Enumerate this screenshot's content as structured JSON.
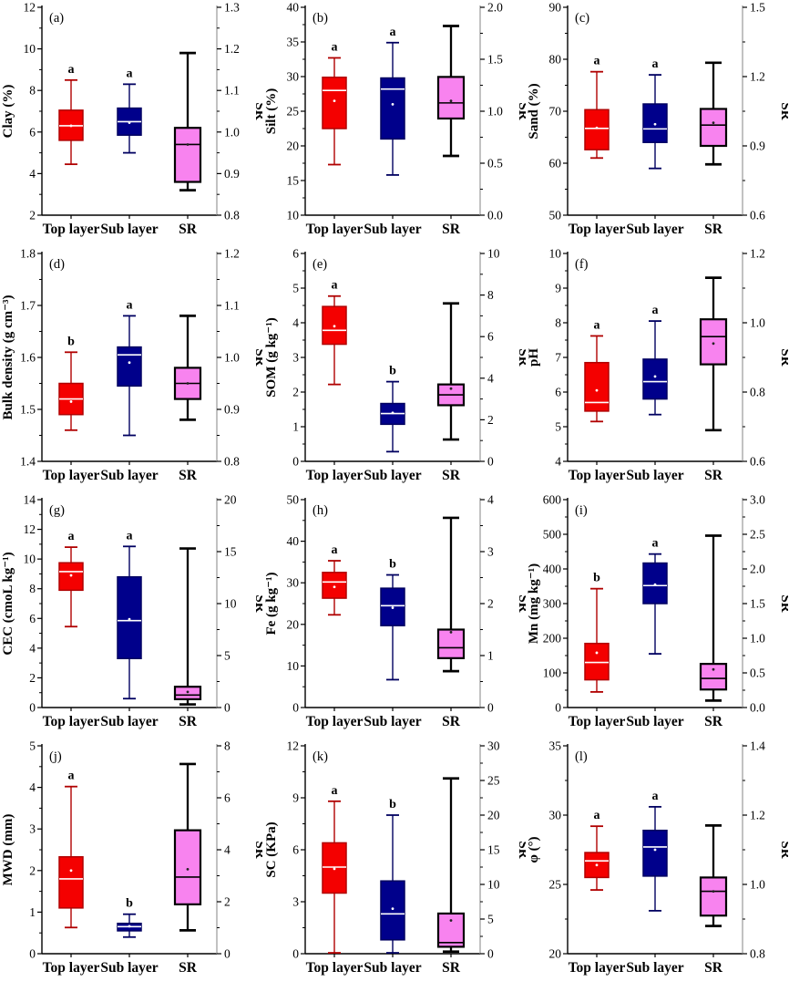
{
  "figure_name": "Soil property box plots by layer",
  "categories": [
    "Top layer",
    "Sub layer",
    "SR"
  ],
  "colors": {
    "top_layer": {
      "fill": "#f40000",
      "stroke": "#b00000",
      "median": "#ffffff",
      "mean": "#ffffff"
    },
    "sub_layer": {
      "fill": "#00008b",
      "stroke": "#000060",
      "median": "#ffffff",
      "mean": "#ffffff"
    },
    "sr": {
      "fill": "#f883ef",
      "stroke": "#000000",
      "median": "#000000",
      "mean": "#222222"
    },
    "right_spine": "#9a9a9a",
    "axis": "#000000"
  },
  "chart_data": [
    {
      "type": "box",
      "label": "(a)",
      "ylabel_left": "Clay (%)",
      "ylabel_right": "SR",
      "left_axis": {
        "min": 2,
        "max": 12,
        "ticks": [
          2,
          4,
          6,
          8,
          10,
          12
        ],
        "tick_labels": [
          "2",
          "4",
          "6",
          "8",
          "10",
          "12"
        ]
      },
      "right_axis": {
        "min": 0.8,
        "max": 1.3,
        "ticks": [
          0.8,
          0.9,
          1.0,
          1.1,
          1.2,
          1.3
        ],
        "tick_labels": [
          "0.8",
          "0.9",
          "1.0",
          "1.1",
          "1.2",
          "1.3"
        ]
      },
      "boxes": [
        {
          "category": "Top layer",
          "axis": "left",
          "color": "top_layer",
          "whisker_low": 4.45,
          "q1": 5.6,
          "median": 6.3,
          "q3": 7.05,
          "whisker_high": 8.5,
          "mean": 6.3,
          "sig": "a"
        },
        {
          "category": "Sub layer",
          "axis": "left",
          "color": "sub_layer",
          "whisker_low": 5.0,
          "q1": 5.85,
          "median": 6.5,
          "q3": 7.15,
          "whisker_high": 8.3,
          "mean": 6.45,
          "sig": "a"
        },
        {
          "category": "SR",
          "axis": "right",
          "color": "sr",
          "whisker_low": 0.86,
          "q1": 0.88,
          "median": 0.97,
          "q3": 1.01,
          "whisker_high": 1.19,
          "mean": 0.97,
          "sig": ""
        }
      ]
    },
    {
      "type": "box",
      "label": "(b)",
      "ylabel_left": "Silt (%)",
      "ylabel_right": "SR",
      "left_axis": {
        "min": 10,
        "max": 40,
        "ticks": [
          10,
          15,
          20,
          25,
          30,
          35,
          40
        ],
        "tick_labels": [
          "10",
          "15",
          "20",
          "25",
          "30",
          "35",
          "40"
        ]
      },
      "right_axis": {
        "min": 0.0,
        "max": 2.0,
        "ticks": [
          0.0,
          0.5,
          1.0,
          1.5,
          2.0
        ],
        "tick_labels": [
          "0.0",
          "0.5",
          "1.0",
          "1.5",
          "2.0"
        ]
      },
      "boxes": [
        {
          "category": "Top layer",
          "axis": "left",
          "color": "top_layer",
          "whisker_low": 17.3,
          "q1": 22.5,
          "median": 28.0,
          "q3": 29.9,
          "whisker_high": 32.7,
          "mean": 26.5,
          "sig": "a"
        },
        {
          "category": "Sub layer",
          "axis": "left",
          "color": "sub_layer",
          "whisker_low": 15.8,
          "q1": 21.0,
          "median": 28.2,
          "q3": 29.8,
          "whisker_high": 34.9,
          "mean": 26.0,
          "sig": "a"
        },
        {
          "category": "SR",
          "axis": "right",
          "color": "sr",
          "whisker_low": 0.57,
          "q1": 0.93,
          "median": 1.08,
          "q3": 1.33,
          "whisker_high": 1.82,
          "mean": 1.1,
          "sig": ""
        }
      ]
    },
    {
      "type": "box",
      "label": "(c)",
      "ylabel_left": "Sand (%)",
      "ylabel_right": "SR",
      "left_axis": {
        "min": 50,
        "max": 90,
        "ticks": [
          50,
          60,
          70,
          80,
          90
        ],
        "tick_labels": [
          "50",
          "60",
          "70",
          "80",
          "90"
        ]
      },
      "right_axis": {
        "min": 0.6,
        "max": 1.5,
        "ticks": [
          0.6,
          0.9,
          1.2,
          1.5
        ],
        "tick_labels": [
          "0.6",
          "0.9",
          "1.2",
          "1.5"
        ]
      },
      "boxes": [
        {
          "category": "Top layer",
          "axis": "left",
          "color": "top_layer",
          "whisker_low": 61.0,
          "q1": 62.6,
          "median": 66.7,
          "q3": 70.3,
          "whisker_high": 77.6,
          "mean": 66.8,
          "sig": "a"
        },
        {
          "category": "Sub layer",
          "axis": "left",
          "color": "sub_layer",
          "whisker_low": 59.0,
          "q1": 64.0,
          "median": 66.6,
          "q3": 71.4,
          "whisker_high": 77.0,
          "mean": 67.5,
          "sig": "a"
        },
        {
          "category": "SR",
          "axis": "right",
          "color": "sr",
          "whisker_low": 0.82,
          "q1": 0.9,
          "median": 0.99,
          "q3": 1.06,
          "whisker_high": 1.26,
          "mean": 1.0,
          "sig": ""
        }
      ]
    },
    {
      "type": "box",
      "label": "(d)",
      "ylabel_left": "Bulk density (g cm⁻³)",
      "ylabel_right": "SR",
      "left_axis": {
        "min": 1.4,
        "max": 1.8,
        "ticks": [
          1.4,
          1.5,
          1.6,
          1.7,
          1.8
        ],
        "tick_labels": [
          "1.4",
          "1.5",
          "1.6",
          "1.7",
          "1.8"
        ]
      },
      "right_axis": {
        "min": 0.8,
        "max": 1.2,
        "ticks": [
          0.8,
          0.9,
          1.0,
          1.1,
          1.2
        ],
        "tick_labels": [
          "0.8",
          "0.9",
          "1.0",
          "1.1",
          "1.2"
        ]
      },
      "boxes": [
        {
          "category": "Top layer",
          "axis": "left",
          "color": "top_layer",
          "whisker_low": 1.46,
          "q1": 1.49,
          "median": 1.52,
          "q3": 1.55,
          "whisker_high": 1.61,
          "mean": 1.515,
          "sig": "b"
        },
        {
          "category": "Sub layer",
          "axis": "left",
          "color": "sub_layer",
          "whisker_low": 1.45,
          "q1": 1.545,
          "median": 1.605,
          "q3": 1.62,
          "whisker_high": 1.68,
          "mean": 1.59,
          "sig": "a"
        },
        {
          "category": "SR",
          "axis": "right",
          "color": "sr",
          "whisker_low": 0.88,
          "q1": 0.92,
          "median": 0.95,
          "q3": 0.98,
          "whisker_high": 1.08,
          "mean": 0.95,
          "sig": ""
        }
      ]
    },
    {
      "type": "box",
      "label": "(e)",
      "ylabel_left": "SOM (g kg⁻¹)",
      "ylabel_right": "SR",
      "left_axis": {
        "min": 0,
        "max": 6,
        "ticks": [
          0,
          1,
          2,
          3,
          4,
          5,
          6
        ],
        "tick_labels": [
          "0",
          "1",
          "2",
          "3",
          "4",
          "5",
          "6"
        ]
      },
      "right_axis": {
        "min": 0,
        "max": 10,
        "ticks": [
          0,
          2,
          4,
          6,
          8,
          10
        ],
        "tick_labels": [
          "0",
          "2",
          "4",
          "6",
          "8",
          "10"
        ]
      },
      "boxes": [
        {
          "category": "Top layer",
          "axis": "left",
          "color": "top_layer",
          "whisker_low": 2.22,
          "q1": 3.38,
          "median": 3.78,
          "q3": 4.47,
          "whisker_high": 4.77,
          "mean": 3.9,
          "sig": "a"
        },
        {
          "category": "Sub layer",
          "axis": "left",
          "color": "sub_layer",
          "whisker_low": 0.28,
          "q1": 1.07,
          "median": 1.38,
          "q3": 1.67,
          "whisker_high": 2.3,
          "mean": 1.4,
          "sig": "b"
        },
        {
          "category": "SR",
          "axis": "right",
          "color": "sr",
          "whisker_low": 1.05,
          "q1": 2.7,
          "median": 3.2,
          "q3": 3.7,
          "whisker_high": 7.6,
          "mean": 3.5,
          "sig": ""
        }
      ]
    },
    {
      "type": "box",
      "label": "(f)",
      "ylabel_left": "pH",
      "ylabel_right": "SR",
      "left_axis": {
        "min": 4,
        "max": 10,
        "ticks": [
          4,
          5,
          6,
          7,
          8,
          9,
          10
        ],
        "tick_labels": [
          "4",
          "5",
          "6",
          "7",
          "8",
          "9",
          "10"
        ]
      },
      "right_axis": {
        "min": 0.6,
        "max": 1.2,
        "ticks": [
          0.6,
          0.8,
          1.0,
          1.2
        ],
        "tick_labels": [
          "0.6",
          "0.8",
          "1.0",
          "1.2"
        ]
      },
      "boxes": [
        {
          "category": "Top layer",
          "axis": "left",
          "color": "top_layer",
          "whisker_low": 5.15,
          "q1": 5.45,
          "median": 5.7,
          "q3": 6.85,
          "whisker_high": 7.62,
          "mean": 6.05,
          "sig": "a"
        },
        {
          "category": "Sub layer",
          "axis": "left",
          "color": "sub_layer",
          "whisker_low": 5.35,
          "q1": 5.8,
          "median": 6.3,
          "q3": 6.95,
          "whisker_high": 8.05,
          "mean": 6.45,
          "sig": "a"
        },
        {
          "category": "SR",
          "axis": "right",
          "color": "sr",
          "whisker_low": 0.69,
          "q1": 0.88,
          "median": 0.96,
          "q3": 1.01,
          "whisker_high": 1.13,
          "mean": 0.94,
          "sig": ""
        }
      ]
    },
    {
      "type": "box",
      "label": "(g)",
      "ylabel_left": "CEC (cmoL kg⁻¹)",
      "ylabel_right": "SR",
      "left_axis": {
        "min": 0,
        "max": 14,
        "ticks": [
          0,
          2,
          4,
          6,
          8,
          10,
          12,
          14
        ],
        "tick_labels": [
          "0",
          "2",
          "4",
          "6",
          "8",
          "10",
          "12",
          "14"
        ]
      },
      "right_axis": {
        "min": 0,
        "max": 20,
        "ticks": [
          0,
          5,
          10,
          15,
          20
        ],
        "tick_labels": [
          "0",
          "5",
          "10",
          "15",
          "20"
        ]
      },
      "boxes": [
        {
          "category": "Top layer",
          "axis": "left",
          "color": "top_layer",
          "whisker_low": 5.45,
          "q1": 7.9,
          "median": 9.15,
          "q3": 9.75,
          "whisker_high": 10.8,
          "mean": 8.9,
          "sig": "a"
        },
        {
          "category": "Sub layer",
          "axis": "left",
          "color": "sub_layer",
          "whisker_low": 0.6,
          "q1": 3.3,
          "median": 5.85,
          "q3": 8.8,
          "whisker_high": 10.85,
          "mean": 5.95,
          "sig": "a"
        },
        {
          "category": "SR",
          "axis": "right",
          "color": "sr",
          "whisker_low": 0.3,
          "q1": 0.8,
          "median": 1.2,
          "q3": 2.0,
          "whisker_high": 15.3,
          "mean": 1.5,
          "sig": ""
        }
      ]
    },
    {
      "type": "box",
      "label": "(h)",
      "ylabel_left": "Fe (g kg⁻¹)",
      "ylabel_right": "SR",
      "left_axis": {
        "min": 0,
        "max": 50,
        "ticks": [
          0,
          10,
          20,
          30,
          40,
          50
        ],
        "tick_labels": [
          "0",
          "10",
          "20",
          "30",
          "40",
          "50"
        ]
      },
      "right_axis": {
        "min": 0,
        "max": 4,
        "ticks": [
          0,
          1,
          2,
          3,
          4
        ],
        "tick_labels": [
          "0",
          "1",
          "2",
          "3",
          "4"
        ]
      },
      "boxes": [
        {
          "category": "Top layer",
          "axis": "left",
          "color": "top_layer",
          "whisker_low": 22.3,
          "q1": 26.3,
          "median": 30.2,
          "q3": 32.5,
          "whisker_high": 35.3,
          "mean": 29.0,
          "sig": "a"
        },
        {
          "category": "Sub layer",
          "axis": "left",
          "color": "sub_layer",
          "whisker_low": 6.7,
          "q1": 19.7,
          "median": 24.5,
          "q3": 28.7,
          "whisker_high": 31.9,
          "mean": 24.0,
          "sig": "b"
        },
        {
          "category": "SR",
          "axis": "right",
          "color": "sr",
          "whisker_low": 0.7,
          "q1": 0.95,
          "median": 1.15,
          "q3": 1.5,
          "whisker_high": 3.65,
          "mean": 1.45,
          "sig": ""
        }
      ]
    },
    {
      "type": "box",
      "label": "(i)",
      "ylabel_left": "Mn (mg kg⁻¹)",
      "ylabel_right": "SR",
      "left_axis": {
        "min": 0,
        "max": 600,
        "ticks": [
          0,
          100,
          200,
          300,
          400,
          500,
          600
        ],
        "tick_labels": [
          "0",
          "100",
          "200",
          "300",
          "400",
          "500",
          "600"
        ]
      },
      "right_axis": {
        "min": 0,
        "max": 3.0,
        "ticks": [
          0.0,
          0.5,
          1.0,
          1.5,
          2.0,
          2.5,
          3.0
        ],
        "tick_labels": [
          "0.0",
          "0.5",
          "1.0",
          "1.5",
          "2.0",
          "2.5",
          "3.0"
        ]
      },
      "boxes": [
        {
          "category": "Top layer",
          "axis": "left",
          "color": "top_layer",
          "whisker_low": 45,
          "q1": 80,
          "median": 130,
          "q3": 185,
          "whisker_high": 343,
          "mean": 158,
          "sig": "b"
        },
        {
          "category": "Sub layer",
          "axis": "left",
          "color": "sub_layer",
          "whisker_low": 155,
          "q1": 300,
          "median": 352,
          "q3": 417,
          "whisker_high": 443,
          "mean": 355,
          "sig": "a"
        },
        {
          "category": "SR",
          "axis": "right",
          "color": "sr",
          "whisker_low": 0.1,
          "q1": 0.26,
          "median": 0.42,
          "q3": 0.63,
          "whisker_high": 2.48,
          "mean": 0.55,
          "sig": ""
        }
      ]
    },
    {
      "type": "box",
      "label": "(j)",
      "ylabel_left": "MWD (mm)",
      "ylabel_right": "SR",
      "left_axis": {
        "min": 0,
        "max": 5,
        "ticks": [
          0,
          1,
          2,
          3,
          4,
          5
        ],
        "tick_labels": [
          "0",
          "1",
          "2",
          "3",
          "4",
          "5"
        ]
      },
      "right_axis": {
        "min": 0,
        "max": 8,
        "ticks": [
          0,
          2,
          4,
          6,
          8
        ],
        "tick_labels": [
          "0",
          "2",
          "4",
          "6",
          "8"
        ]
      },
      "boxes": [
        {
          "category": "Top layer",
          "axis": "left",
          "color": "top_layer",
          "whisker_low": 0.63,
          "q1": 1.1,
          "median": 1.8,
          "q3": 2.33,
          "whisker_high": 4.02,
          "mean": 2.0,
          "sig": "a"
        },
        {
          "category": "Sub layer",
          "axis": "left",
          "color": "sub_layer",
          "whisker_low": 0.4,
          "q1": 0.55,
          "median": 0.65,
          "q3": 0.73,
          "whisker_high": 0.95,
          "mean": 0.66,
          "sig": "b"
        },
        {
          "category": "SR",
          "axis": "right",
          "color": "sr",
          "whisker_low": 0.9,
          "q1": 1.9,
          "median": 2.95,
          "q3": 4.75,
          "whisker_high": 7.3,
          "mean": 3.25,
          "sig": ""
        }
      ]
    },
    {
      "type": "box",
      "label": "(k)",
      "ylabel_left": "SC (KPa)",
      "ylabel_right": "SR",
      "left_axis": {
        "min": 0,
        "max": 12,
        "ticks": [
          0,
          3,
          6,
          9,
          12
        ],
        "tick_labels": [
          "0",
          "3",
          "6",
          "9",
          "12"
        ]
      },
      "right_axis": {
        "min": 0,
        "max": 30,
        "ticks": [
          0,
          5,
          10,
          15,
          20,
          25,
          30
        ],
        "tick_labels": [
          "0",
          "5",
          "10",
          "15",
          "20",
          "25",
          "30"
        ]
      },
      "boxes": [
        {
          "category": "Top layer",
          "axis": "left",
          "color": "top_layer",
          "whisker_low": 0.05,
          "q1": 3.5,
          "median": 5.0,
          "q3": 6.4,
          "whisker_high": 8.8,
          "mean": 4.9,
          "sig": "a"
        },
        {
          "category": "Sub layer",
          "axis": "left",
          "color": "sub_layer",
          "whisker_low": 0.05,
          "q1": 0.8,
          "median": 2.3,
          "q3": 4.2,
          "whisker_high": 8.0,
          "mean": 2.6,
          "sig": "b"
        },
        {
          "category": "SR",
          "axis": "right",
          "color": "sr",
          "whisker_low": 0.3,
          "q1": 1.0,
          "median": 1.6,
          "q3": 5.8,
          "whisker_high": 25.3,
          "mean": 4.8,
          "sig": ""
        }
      ]
    },
    {
      "type": "box",
      "label": "(l)",
      "ylabel_left": "φ (°)",
      "ylabel_right": "SR",
      "left_axis": {
        "min": 20,
        "max": 35,
        "ticks": [
          20,
          25,
          30,
          35
        ],
        "tick_labels": [
          "20",
          "25",
          "30",
          "35"
        ]
      },
      "right_axis": {
        "min": 0.8,
        "max": 1.4,
        "ticks": [
          0.8,
          1.0,
          1.2,
          1.4
        ],
        "tick_labels": [
          "0.8",
          "1.0",
          "1.2",
          "1.4"
        ]
      },
      "boxes": [
        {
          "category": "Top layer",
          "axis": "left",
          "color": "top_layer",
          "whisker_low": 24.6,
          "q1": 25.5,
          "median": 26.7,
          "q3": 27.3,
          "whisker_high": 29.2,
          "mean": 26.4,
          "sig": "a"
        },
        {
          "category": "Sub layer",
          "axis": "left",
          "color": "sub_layer",
          "whisker_low": 23.1,
          "q1": 25.6,
          "median": 27.7,
          "q3": 28.9,
          "whisker_high": 30.6,
          "mean": 27.5,
          "sig": "a"
        },
        {
          "category": "SR",
          "axis": "right",
          "color": "sr",
          "whisker_low": 0.88,
          "q1": 0.91,
          "median": 0.98,
          "q3": 1.02,
          "whisker_high": 1.17,
          "mean": 0.98,
          "sig": ""
        }
      ]
    }
  ]
}
